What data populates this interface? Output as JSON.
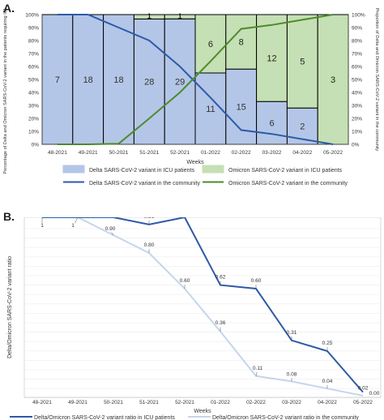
{
  "panel_a": {
    "label": "A."
  },
  "panel_b": {
    "label": "B."
  },
  "chart_data": [
    {
      "type": "bar",
      "panel": "A.",
      "title": "",
      "categories": [
        "48-2021",
        "49-2021",
        "50-2021",
        "51-2021",
        "52-2021",
        "01-2022",
        "02-2022",
        "03-2022",
        "04-2022",
        "05-2022"
      ],
      "xlabel": "Weeks",
      "ylabel": "Percentage of Delta and Omicron SARS-CoV-2 variant in the patients requiring ICU admission",
      "ylabel_right": "Proportion of Delta and Omicron SARS-CoV-2 variant in the community",
      "ylim": [
        0,
        100
      ],
      "yticks": [
        "0%",
        "10%",
        "20%",
        "30%",
        "40%",
        "50%",
        "60%",
        "70%",
        "80%",
        "90%",
        "100%"
      ],
      "series": [
        {
          "name": "Delta SARS-CoV-2 variant in ICU patients",
          "kind": "stacked-bar",
          "color": "#b4c6e7",
          "percent": [
            100,
            100,
            100,
            96.6,
            96.7,
            55,
            58,
            33,
            28,
            0
          ],
          "counts": [
            7,
            18,
            18,
            28,
            29,
            11,
            15,
            6,
            2,
            null
          ]
        },
        {
          "name": "Omicron SARS-CoV-2 variant in ICU patients",
          "kind": "stacked-bar",
          "color": "#c5e0b4",
          "percent": [
            0,
            0,
            0,
            3.4,
            3.3,
            45,
            42,
            67,
            72,
            100
          ],
          "counts": [
            null,
            null,
            null,
            1,
            1,
            6,
            8,
            12,
            5,
            3
          ]
        },
        {
          "name": "Delta SARS-CoV-2 variant in the community",
          "kind": "line",
          "color": "#2e5aa8",
          "values": [
            100,
            100,
            90,
            80,
            60,
            36,
            11,
            8,
            4,
            0
          ]
        },
        {
          "name": "Omicron SARS-CoV-2 variant in the community",
          "kind": "line",
          "color": "#4e8a2e",
          "values": [
            0,
            0,
            0.5,
            20,
            40,
            64,
            89,
            92,
            96,
            100
          ]
        }
      ],
      "legend": {
        "items": [
          {
            "label": "Delta SARS-CoV-2 variant in ICU patients",
            "color": "#b4c6e7",
            "kind": "box"
          },
          {
            "label": "Omicron SARS-CoV-2 variant in ICU patients",
            "color": "#c5e0b4",
            "kind": "box"
          },
          {
            "label": "Delta SARS-CoV-2 variant in the community",
            "color": "#2e5aa8",
            "kind": "line"
          },
          {
            "label": "Omicron SARS-CoV-2 variant in the community",
            "color": "#4e8a2e",
            "kind": "line"
          }
        ],
        "placement": "bottom"
      }
    },
    {
      "type": "line",
      "panel": "B.",
      "title": "",
      "x": [
        "48-2021",
        "49-2021",
        "50-2021",
        "51-2021",
        "52-2021",
        "01-2022",
        "02-2022",
        "03-2022",
        "04-2022",
        "05-2022"
      ],
      "xlabel": "Weeks",
      "ylabel": "Delta/Omicron SARS-CoV-2 variant ratio",
      "grid": true,
      "series": [
        {
          "name": "Delta/Omicron SARS-CoV-2 variant ratio in ICU patients",
          "color": "#2e5aa8",
          "values": [
            1,
            1,
            1,
            0.96,
            1,
            0.62,
            0.6,
            0.31,
            0.25,
            0.02
          ],
          "labels": [
            "1",
            "1",
            "1",
            "0.96",
            "1",
            "0.62",
            "0.60",
            "0.31",
            "0.25",
            "0.02"
          ]
        },
        {
          "name": "Delta/Omicron SARS-CoV-2 variant ratio in the community",
          "color": "#c5d6ec",
          "values": [
            1,
            1,
            0.9,
            0.8,
            0.6,
            0.36,
            0.11,
            0.08,
            0.04,
            0.0
          ],
          "labels": [
            "1",
            "1",
            "0.90",
            "0.80",
            "0.60",
            "0.36",
            "0.11",
            "0.08",
            "0.04",
            "0.00"
          ]
        }
      ],
      "legend_placement": "bottom"
    }
  ]
}
